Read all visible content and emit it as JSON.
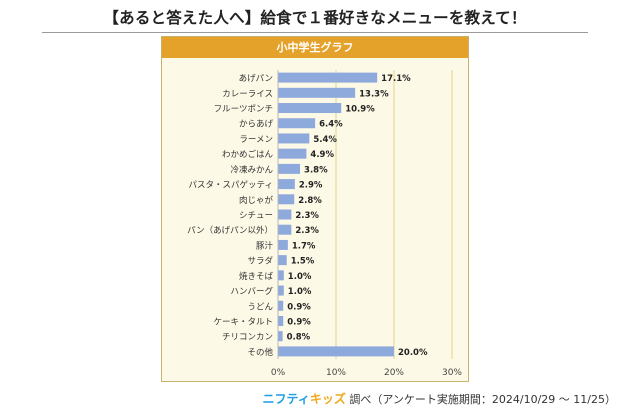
{
  "headline": "【あると答えた人へ】給食で１番好きなメニューを教えて！",
  "panel_title": "小中学生グラフ",
  "footer": {
    "brand_part1": "ニフティ",
    "brand_part2": "キッズ",
    "note": "調べ（アンケート実施期間：2024/10/29 ～ 11/25）"
  },
  "colors": {
    "bar": "#8ea9db",
    "header": "#e4a22b",
    "panel_bg": "#fdf9e7",
    "grid": "#e2d28a"
  },
  "chart_data": {
    "type": "bar",
    "orientation": "horizontal",
    "title": "小中学生グラフ",
    "categories": [
      "あげパン",
      "カレーライス",
      "フルーツポンチ",
      "からあげ",
      "ラーメン",
      "わかめごはん",
      "冷凍みかん",
      "パスタ・スパゲッティ",
      "肉じゃが",
      "シチュー",
      "パン（あげパン以外）",
      "豚汁",
      "サラダ",
      "焼きそば",
      "ハンバーグ",
      "うどん",
      "ケーキ・タルト",
      "チリコンカン",
      "その他"
    ],
    "values": [
      17.1,
      13.3,
      10.9,
      6.4,
      5.4,
      4.9,
      3.8,
      2.9,
      2.8,
      2.3,
      2.3,
      1.7,
      1.5,
      1.0,
      1.0,
      0.9,
      0.9,
      0.8,
      20.0
    ],
    "value_labels": [
      "17.1%",
      "13.3%",
      "10.9%",
      "6.4%",
      "5.4%",
      "4.9%",
      "3.8%",
      "2.9%",
      "2.8%",
      "2.3%",
      "2.3%",
      "1.7%",
      "1.5%",
      "1.0%",
      "1.0%",
      "0.9%",
      "0.9%",
      "0.8%",
      "20.0%"
    ],
    "xlim": [
      0,
      30
    ],
    "xticks": [
      "0%",
      "10%",
      "20%",
      "30%"
    ],
    "grid": true
  }
}
